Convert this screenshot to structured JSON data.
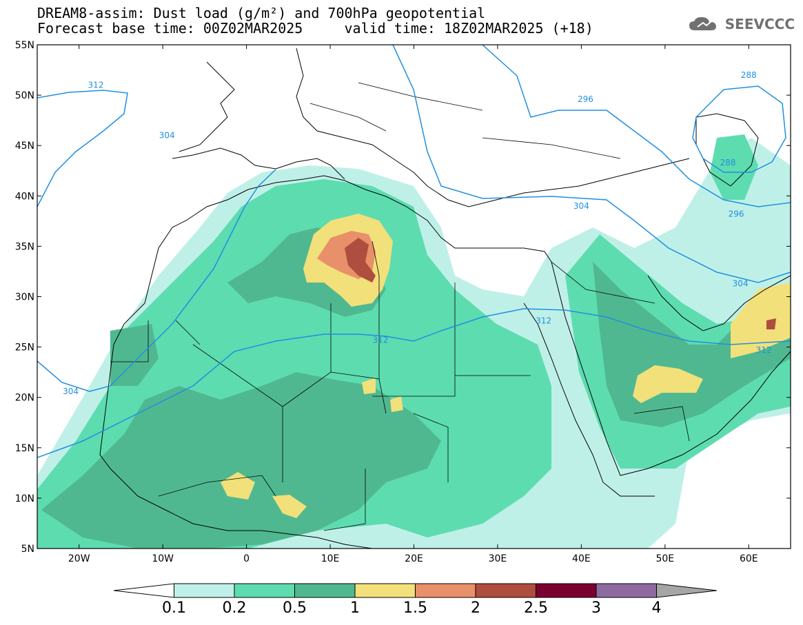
{
  "header": {
    "line1": "DREAM8-assim: Dust load (g/m²) and 700hPa geopotential",
    "line2": "Forecast base time: 00Z02MAR2025     valid time: 18Z02MAR2025 (+18)"
  },
  "logo": {
    "text": "SEEVCCC",
    "icon": "cloud-icon"
  },
  "map": {
    "lat_ticks": [
      "55N",
      "50N",
      "45N",
      "40N",
      "35N",
      "30N",
      "25N",
      "20N",
      "15N",
      "10N",
      "5N"
    ],
    "lon_ticks": [
      "20W",
      "10W",
      "0",
      "10E",
      "20E",
      "30E",
      "40E",
      "50E",
      "60E"
    ],
    "lon_range": [
      -25,
      65
    ],
    "lat_range": [
      5,
      55
    ],
    "contour_color": "#1f8fe0",
    "contour_labels": [
      {
        "text": "312",
        "lon": -18,
        "lat": 51.0
      },
      {
        "text": "304",
        "lon": -9.5,
        "lat": 46.0
      },
      {
        "text": "296",
        "lon": 40.5,
        "lat": 49.6
      },
      {
        "text": "288",
        "lon": 60.0,
        "lat": 52.0
      },
      {
        "text": "288",
        "lon": 57.5,
        "lat": 43.3
      },
      {
        "text": "296",
        "lon": 58.5,
        "lat": 38.2
      },
      {
        "text": "304",
        "lon": 40.0,
        "lat": 39.0
      },
      {
        "text": "304",
        "lon": 59.0,
        "lat": 31.3
      },
      {
        "text": "312",
        "lon": 35.5,
        "lat": 27.6
      },
      {
        "text": "312",
        "lon": 16.0,
        "lat": 25.7
      },
      {
        "text": "312",
        "lon": 61.8,
        "lat": 24.7
      },
      {
        "text": "304",
        "lon": -21.0,
        "lat": 20.6
      }
    ]
  },
  "colorbar": {
    "labels": [
      "0.1",
      "0.2",
      "0.5",
      "1",
      "1.5",
      "2",
      "2.5",
      "3",
      "4"
    ],
    "colors": [
      "#ffffff",
      "#bff0e8",
      "#5ddcb0",
      "#50b890",
      "#f2e07a",
      "#e8906a",
      "#ad4e3e",
      "#7a0030",
      "#8e6aa0",
      "#a6a6a6"
    ]
  }
}
